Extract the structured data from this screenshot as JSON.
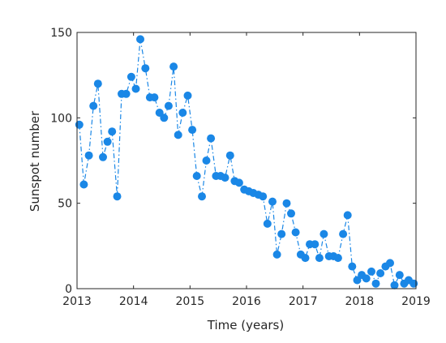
{
  "chart_data": {
    "type": "line",
    "title": "",
    "xlabel": "Time (years)",
    "ylabel": "Sunspot number",
    "xlim": [
      2013,
      2019
    ],
    "ylim": [
      0,
      150
    ],
    "xticks": [
      2013,
      2014,
      2015,
      2016,
      2017,
      2018,
      2019
    ],
    "yticks": [
      0,
      50,
      100,
      150
    ],
    "grid": false,
    "line_style": "dash-dot",
    "marker": "circle",
    "colors": {
      "series": "#1a87e6",
      "axis": "#262626"
    },
    "series": [
      {
        "x": [
          2013.04,
          2013.12,
          2013.21,
          2013.29,
          2013.37,
          2013.46,
          2013.54,
          2013.62,
          2013.71,
          2013.79,
          2013.87,
          2013.96,
          2014.04,
          2014.12,
          2014.21,
          2014.29,
          2014.37,
          2014.46,
          2014.54,
          2014.62,
          2014.71,
          2014.79,
          2014.87,
          2014.96,
          2015.04,
          2015.12,
          2015.21,
          2015.29,
          2015.37,
          2015.46,
          2015.54,
          2015.62,
          2015.71,
          2015.79,
          2015.87,
          2015.96,
          2016.04,
          2016.12,
          2016.21,
          2016.29,
          2016.37,
          2016.46,
          2016.54,
          2016.62,
          2016.71,
          2016.79,
          2016.87,
          2016.96,
          2017.04,
          2017.12,
          2017.21,
          2017.29,
          2017.37,
          2017.46,
          2017.54,
          2017.62,
          2017.71,
          2017.79,
          2017.87,
          2017.96,
          2018.04,
          2018.12,
          2018.21,
          2018.29,
          2018.37,
          2018.46,
          2018.54,
          2018.62,
          2018.71,
          2018.79,
          2018.87,
          2018.96
        ],
        "y": [
          96,
          61,
          78,
          107,
          120,
          77,
          86,
          92,
          54,
          114,
          114,
          124,
          117,
          146,
          129,
          112,
          112,
          103,
          100,
          107,
          130,
          90,
          103,
          113,
          93,
          66,
          54,
          75,
          88,
          66,
          66,
          65,
          78,
          63,
          62,
          58,
          57,
          56,
          55,
          54,
          38,
          51,
          20,
          32,
          50,
          44,
          33,
          20,
          18,
          26,
          26,
          18,
          32,
          19,
          19,
          18,
          32,
          43,
          13,
          5,
          8,
          6,
          10,
          3,
          9,
          13,
          15,
          2,
          8,
          3,
          5,
          3
        ]
      }
    ]
  }
}
